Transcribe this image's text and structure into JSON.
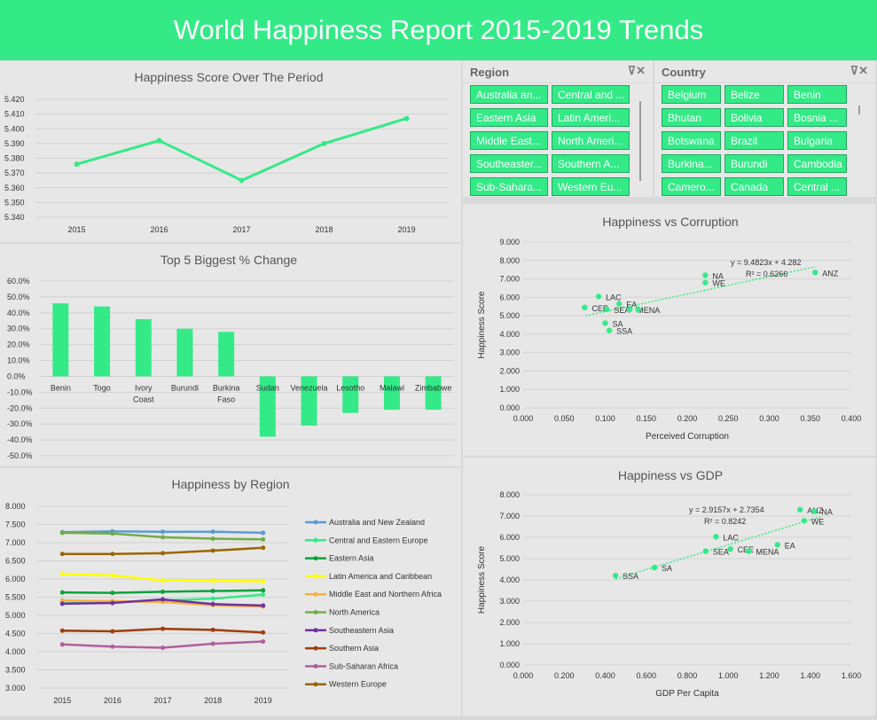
{
  "banner": {
    "title": "World Happiness Report 2015-2019 Trends"
  },
  "colors": {
    "accent": "#33ea87",
    "panel": "#e7e7e7"
  },
  "slicers": {
    "region": {
      "title": "Region",
      "filter_icon": "clear-filter-icon",
      "items": [
        "Australia an...",
        "Central and ...",
        "Eastern Asia",
        "Latin Ameri...",
        "Middle East...",
        "North Ameri...",
        "Southeaster...",
        "Southern A...",
        "Sub-Sahara...",
        "Western Eu..."
      ]
    },
    "country": {
      "title": "Country",
      "filter_icon": "clear-filter-icon",
      "items": [
        "Belgium",
        "Belize",
        "Benin",
        "Bhutan",
        "Bolivia",
        "Bosnia ...",
        "Botswana",
        "Brazil",
        "Bulgaria",
        "Burkina...",
        "Burundi",
        "Cambodia",
        "Camero...",
        "Canada",
        "Central ..."
      ]
    }
  },
  "chart_data": [
    {
      "id": "line",
      "type": "line",
      "title": "Happiness Score Over The Period",
      "x": [
        "2015",
        "2016",
        "2017",
        "2018",
        "2019"
      ],
      "values": [
        5.376,
        5.392,
        5.365,
        5.39,
        5.407
      ],
      "ylim": [
        5.34,
        5.42
      ],
      "yticks": [
        "5.340",
        "5.350",
        "5.360",
        "5.370",
        "5.380",
        "5.390",
        "5.400",
        "5.410",
        "5.420"
      ],
      "color": "#33ea87"
    },
    {
      "id": "bar",
      "type": "bar",
      "title": "Top 5 Biggest % Change",
      "categories": [
        "Benin",
        "Togo",
        "Ivory Coast",
        "Burundi",
        "Burkina Faso",
        "Sudan",
        "Venezuela",
        "Lesotho",
        "Malawi",
        "Zimbabwe"
      ],
      "values": [
        46,
        44,
        36,
        30,
        28,
        -38,
        -31,
        -23,
        -21,
        -21
      ],
      "ylim": [
        -50,
        60
      ],
      "yticks": [
        "-50.0%",
        "-40.0%",
        "-30.0%",
        "-20.0%",
        "-10.0%",
        "0.0%",
        "10.0%",
        "20.0%",
        "30.0%",
        "40.0%",
        "50.0%",
        "60.0%"
      ],
      "color": "#33ea87"
    },
    {
      "id": "region",
      "type": "line",
      "title": "Happiness by Region",
      "x": [
        "2015",
        "2016",
        "2017",
        "2018",
        "2019"
      ],
      "ylim": [
        3.0,
        8.0
      ],
      "yticks": [
        "3.000",
        "3.500",
        "4.000",
        "4.500",
        "5.000",
        "5.500",
        "6.000",
        "6.500",
        "7.000",
        "7.500",
        "8.000"
      ],
      "legend": "right",
      "series": [
        {
          "name": "Australia and New Zealand",
          "color": "#5b9bd5",
          "values": [
            7.29,
            7.31,
            7.3,
            7.3,
            7.27
          ]
        },
        {
          "name": "Central and Eastern Europe",
          "color": "#33ea87",
          "values": [
            5.33,
            5.37,
            5.41,
            5.46,
            5.57
          ]
        },
        {
          "name": "Eastern Asia",
          "color": "#0aa23c",
          "values": [
            5.63,
            5.62,
            5.65,
            5.67,
            5.69
          ]
        },
        {
          "name": "Latin America and Caribbean",
          "color": "#ffff00",
          "values": [
            6.14,
            6.1,
            5.96,
            5.95,
            5.94
          ]
        },
        {
          "name": "Middle East and Northern Africa",
          "color": "#f4b13a",
          "values": [
            5.41,
            5.39,
            5.37,
            5.28,
            5.24
          ]
        },
        {
          "name": "North America",
          "color": "#70ad47",
          "values": [
            7.27,
            7.25,
            7.15,
            7.11,
            7.09
          ]
        },
        {
          "name": "Southeastern Asia",
          "color": "#7030a0",
          "values": [
            5.32,
            5.34,
            5.44,
            5.31,
            5.27
          ]
        },
        {
          "name": "Southern Asia",
          "color": "#9c3d0c",
          "values": [
            4.58,
            4.56,
            4.63,
            4.6,
            4.53
          ]
        },
        {
          "name": "Sub-Saharan Africa",
          "color": "#b05f9b",
          "values": [
            4.2,
            4.14,
            4.11,
            4.22,
            4.28
          ]
        },
        {
          "name": "Western Europe",
          "color": "#9c6500",
          "values": [
            6.69,
            6.69,
            6.71,
            6.78,
            6.86
          ]
        }
      ]
    },
    {
      "id": "corr",
      "type": "scatter",
      "title": "Happiness vs Corruption",
      "xlabel": "Perceived Corruption",
      "ylabel": "Happiness Score",
      "xlim": [
        0,
        0.4
      ],
      "ylim": [
        0,
        9
      ],
      "xticks": [
        "0.000",
        "0.050",
        "0.100",
        "0.150",
        "0.200",
        "0.250",
        "0.300",
        "0.350",
        "0.400"
      ],
      "yticks": [
        "0.000",
        "1.000",
        "2.000",
        "3.000",
        "4.000",
        "5.000",
        "6.000",
        "7.000",
        "8.000",
        "9.000"
      ],
      "equation": "y = 9.4823x + 4.282",
      "r2": "R² = 0.6266",
      "trend": [
        0.076,
        0.356
      ],
      "points": [
        {
          "label": "ANZ",
          "x": 0.356,
          "y": 7.35
        },
        {
          "label": "NA",
          "x": 0.222,
          "y": 7.2
        },
        {
          "label": "WE",
          "x": 0.222,
          "y": 6.8
        },
        {
          "label": "LAC",
          "x": 0.092,
          "y": 6.05
        },
        {
          "label": "EA",
          "x": 0.117,
          "y": 5.65
        },
        {
          "label": "CEE",
          "x": 0.075,
          "y": 5.45
        },
        {
          "label": "SEA",
          "x": 0.102,
          "y": 5.35
        },
        {
          "label": "MENA",
          "x": 0.13,
          "y": 5.35
        },
        {
          "label": "",
          "x": 0.14,
          "y": 5.35
        },
        {
          "label": "SA",
          "x": 0.1,
          "y": 4.6
        },
        {
          "label": "SSA",
          "x": 0.105,
          "y": 4.2
        }
      ]
    },
    {
      "id": "gdp",
      "type": "scatter",
      "title": "Happiness vs GDP",
      "xlabel": "GDP Per Capita",
      "ylabel": "Happiness Score",
      "xlim": [
        0,
        1.6
      ],
      "ylim": [
        0,
        8
      ],
      "xticks": [
        "0.000",
        "0.200",
        "0.400",
        "0.600",
        "0.800",
        "1.000",
        "1.200",
        "1.400",
        "1.600"
      ],
      "yticks": [
        "0.000",
        "1.000",
        "2.000",
        "3.000",
        "4.000",
        "5.000",
        "6.000",
        "7.000",
        "8.000"
      ],
      "equation": "y = 2.9157x + 2.7354",
      "r2": "R² = 0.8242",
      "trend": [
        0.45,
        1.45
      ],
      "points": [
        {
          "label": "ANZ",
          "x": 1.35,
          "y": 7.3
        },
        {
          "label": "NA",
          "x": 1.42,
          "y": 7.22
        },
        {
          "label": "WE",
          "x": 1.37,
          "y": 6.78
        },
        {
          "label": "LAC",
          "x": 0.94,
          "y": 6.03
        },
        {
          "label": "EA",
          "x": 1.24,
          "y": 5.65
        },
        {
          "label": "SEA",
          "x": 0.89,
          "y": 5.35
        },
        {
          "label": "CEE",
          "x": 1.01,
          "y": 5.45
        },
        {
          "label": "MENA",
          "x": 1.1,
          "y": 5.35
        },
        {
          "label": "SA",
          "x": 0.64,
          "y": 4.58
        },
        {
          "label": "SSA",
          "x": 0.45,
          "y": 4.2
        }
      ]
    }
  ]
}
